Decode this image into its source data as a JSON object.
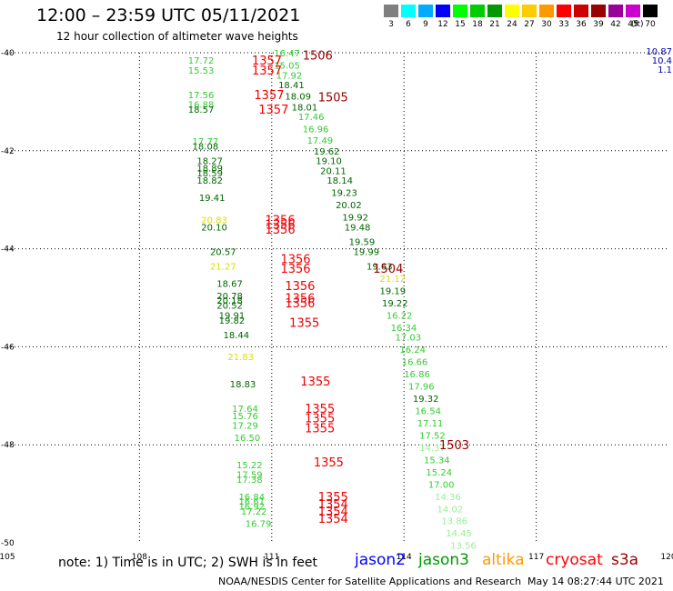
{
  "header": {
    "title": "12:00 – 23:59 UTC 05/11/2021",
    "subtitle": "12 hour collection of altimeter wave heights"
  },
  "color_scale": {
    "labels": [
      "3",
      "6",
      "9",
      "12",
      "15",
      "18",
      "21",
      "24",
      "27",
      "30",
      "33",
      "36",
      "39",
      "42",
      "45",
      "70"
    ],
    "colors": [
      "#7f7f7f",
      "#00ffff",
      "#00aaff",
      "#0000ff",
      "#00ff00",
      "#00cc00",
      "#009900",
      "#ffff00",
      "#ffcc00",
      "#ff9900",
      "#ff0000",
      "#cc0000",
      "#990000",
      "#990099",
      "#cc00cc",
      "#000000"
    ],
    "unit": "(ft)"
  },
  "map": {
    "lon_ticks": [
      "105",
      "108",
      "111",
      "114",
      "117",
      "120"
    ],
    "lat_ticks": [
      "-40",
      "-42",
      "-44",
      "-46",
      "-48",
      "-50"
    ],
    "edge_labels": [
      "10.87",
      "10.4",
      "1.1"
    ],
    "wave_labels": [
      {
        "t": "16.47",
        "lon": 111.05,
        "lat": -40.0,
        "c": "#33cc33"
      },
      {
        "t": "17.72",
        "lon": 109.1,
        "lat": -40.15,
        "c": "#33cc33"
      },
      {
        "t": "15.05",
        "lon": 111.05,
        "lat": -40.25,
        "c": "#33cc33"
      },
      {
        "t": "15.53",
        "lon": 109.1,
        "lat": -40.35,
        "c": "#33cc33"
      },
      {
        "t": "17.92",
        "lon": 111.1,
        "lat": -40.45,
        "c": "#33cc33"
      },
      {
        "t": "18.41",
        "lon": 111.15,
        "lat": -40.65,
        "c": "#006600"
      },
      {
        "t": "17.56",
        "lon": 109.1,
        "lat": -40.85,
        "c": "#33cc33"
      },
      {
        "t": "18.09",
        "lon": 111.3,
        "lat": -40.88,
        "c": "#006600"
      },
      {
        "t": "16.88",
        "lon": 109.1,
        "lat": -41.05,
        "c": "#33cc33"
      },
      {
        "t": "18.01",
        "lon": 111.45,
        "lat": -41.1,
        "c": "#006600"
      },
      {
        "t": "18.57",
        "lon": 109.1,
        "lat": -41.15,
        "c": "#006600"
      },
      {
        "t": "17.46",
        "lon": 111.6,
        "lat": -41.3,
        "c": "#33cc33"
      },
      {
        "t": "16.96",
        "lon": 111.7,
        "lat": -41.55,
        "c": "#33cc33"
      },
      {
        "t": "17.77",
        "lon": 109.2,
        "lat": -41.8,
        "c": "#33cc33"
      },
      {
        "t": "17.49",
        "lon": 111.8,
        "lat": -41.78,
        "c": "#33cc33"
      },
      {
        "t": "18.08",
        "lon": 109.2,
        "lat": -41.9,
        "c": "#006600"
      },
      {
        "t": "19.62",
        "lon": 111.95,
        "lat": -42.0,
        "c": "#006600"
      },
      {
        "t": "18.27",
        "lon": 109.3,
        "lat": -42.2,
        "c": "#006600"
      },
      {
        "t": "19.10",
        "lon": 112.0,
        "lat": -42.2,
        "c": "#006600"
      },
      {
        "t": "18.89",
        "lon": 109.3,
        "lat": -42.35,
        "c": "#006600"
      },
      {
        "t": "20.11",
        "lon": 112.1,
        "lat": -42.4,
        "c": "#006600"
      },
      {
        "t": "18.59",
        "lon": 109.3,
        "lat": -42.45,
        "c": "#006600"
      },
      {
        "t": "18.82",
        "lon": 109.3,
        "lat": -42.6,
        "c": "#006600"
      },
      {
        "t": "18.14",
        "lon": 112.25,
        "lat": -42.6,
        "c": "#006600"
      },
      {
        "t": "19.23",
        "lon": 112.35,
        "lat": -42.85,
        "c": "#006600"
      },
      {
        "t": "19.41",
        "lon": 109.35,
        "lat": -42.95,
        "c": "#006600"
      },
      {
        "t": "20.02",
        "lon": 112.45,
        "lat": -43.1,
        "c": "#006600"
      },
      {
        "t": "19.92",
        "lon": 112.6,
        "lat": -43.35,
        "c": "#006600"
      },
      {
        "t": "20.83",
        "lon": 109.4,
        "lat": -43.4,
        "c": "#dddd00"
      },
      {
        "t": "20.10",
        "lon": 109.4,
        "lat": -43.55,
        "c": "#006600"
      },
      {
        "t": "19.48",
        "lon": 112.65,
        "lat": -43.55,
        "c": "#006600"
      },
      {
        "t": "19.59",
        "lon": 112.75,
        "lat": -43.85,
        "c": "#006600"
      },
      {
        "t": "20.57",
        "lon": 109.6,
        "lat": -44.05,
        "c": "#006600"
      },
      {
        "t": "19.99",
        "lon": 112.85,
        "lat": -44.05,
        "c": "#006600"
      },
      {
        "t": "21.27",
        "lon": 109.6,
        "lat": -44.35,
        "c": "#dddd00"
      },
      {
        "t": "19.63",
        "lon": 113.15,
        "lat": -44.35,
        "c": "#006600"
      },
      {
        "t": "21.12",
        "lon": 113.45,
        "lat": -44.6,
        "c": "#dddd00"
      },
      {
        "t": "18.67",
        "lon": 109.75,
        "lat": -44.7,
        "c": "#006600"
      },
      {
        "t": "19.19",
        "lon": 113.45,
        "lat": -44.85,
        "c": "#006600"
      },
      {
        "t": "20.78",
        "lon": 109.75,
        "lat": -44.95,
        "c": "#006600"
      },
      {
        "t": "20.18",
        "lon": 109.75,
        "lat": -45.05,
        "c": "#006600"
      },
      {
        "t": "20.52",
        "lon": 109.75,
        "lat": -45.15,
        "c": "#006600"
      },
      {
        "t": "19.22",
        "lon": 113.5,
        "lat": -45.1,
        "c": "#006600"
      },
      {
        "t": "19.91",
        "lon": 109.8,
        "lat": -45.35,
        "c": "#006600"
      },
      {
        "t": "16.22",
        "lon": 113.6,
        "lat": -45.35,
        "c": "#33cc33"
      },
      {
        "t": "19.82",
        "lon": 109.8,
        "lat": -45.45,
        "c": "#006600"
      },
      {
        "t": "16.34",
        "lon": 113.7,
        "lat": -45.6,
        "c": "#33cc33"
      },
      {
        "t": "18.44",
        "lon": 109.9,
        "lat": -45.75,
        "c": "#006600"
      },
      {
        "t": "17.03",
        "lon": 113.8,
        "lat": -45.8,
        "c": "#33cc33"
      },
      {
        "t": "16.24",
        "lon": 113.9,
        "lat": -46.05,
        "c": "#33cc33"
      },
      {
        "t": "21.83",
        "lon": 110.0,
        "lat": -46.2,
        "c": "#dddd00"
      },
      {
        "t": "16.66",
        "lon": 113.95,
        "lat": -46.3,
        "c": "#33cc33"
      },
      {
        "t": "16.86",
        "lon": 114.0,
        "lat": -46.55,
        "c": "#33cc33"
      },
      {
        "t": "18.83",
        "lon": 110.05,
        "lat": -46.75,
        "c": "#006600"
      },
      {
        "t": "17.96",
        "lon": 114.1,
        "lat": -46.8,
        "c": "#33cc33"
      },
      {
        "t": "19.32",
        "lon": 114.2,
        "lat": -47.05,
        "c": "#006600"
      },
      {
        "t": "17.64",
        "lon": 110.1,
        "lat": -47.25,
        "c": "#33cc33"
      },
      {
        "t": "16.54",
        "lon": 114.25,
        "lat": -47.3,
        "c": "#33cc33"
      },
      {
        "t": "15.76",
        "lon": 110.1,
        "lat": -47.4,
        "c": "#33cc33"
      },
      {
        "t": "17.11",
        "lon": 114.3,
        "lat": -47.55,
        "c": "#33cc33"
      },
      {
        "t": "17.29",
        "lon": 110.1,
        "lat": -47.6,
        "c": "#33cc33"
      },
      {
        "t": "16.50",
        "lon": 110.15,
        "lat": -47.85,
        "c": "#33cc33"
      },
      {
        "t": "17.52",
        "lon": 114.35,
        "lat": -47.8,
        "c": "#33cc33"
      },
      {
        "t": "14.37",
        "lon": 114.35,
        "lat": -48.05,
        "c": "#99ee99"
      },
      {
        "t": "15.34",
        "lon": 114.45,
        "lat": -48.3,
        "c": "#33cc33"
      },
      {
        "t": "15.22",
        "lon": 110.2,
        "lat": -48.4,
        "c": "#33cc33"
      },
      {
        "t": "15.24",
        "lon": 114.5,
        "lat": -48.55,
        "c": "#33cc33"
      },
      {
        "t": "17.59",
        "lon": 110.2,
        "lat": -48.6,
        "c": "#33cc33"
      },
      {
        "t": "17.38",
        "lon": 110.2,
        "lat": -48.7,
        "c": "#33cc33"
      },
      {
        "t": "17.00",
        "lon": 114.55,
        "lat": -48.8,
        "c": "#33cc33"
      },
      {
        "t": "16.84",
        "lon": 110.25,
        "lat": -49.05,
        "c": "#33cc33"
      },
      {
        "t": "14.36",
        "lon": 114.7,
        "lat": -49.05,
        "c": "#99ee99"
      },
      {
        "t": "16.61",
        "lon": 110.25,
        "lat": -49.15,
        "c": "#33cc33"
      },
      {
        "t": "16.92",
        "lon": 110.25,
        "lat": -49.25,
        "c": "#33cc33"
      },
      {
        "t": "14.02",
        "lon": 114.75,
        "lat": -49.3,
        "c": "#99ee99"
      },
      {
        "t": "17.22",
        "lon": 110.3,
        "lat": -49.35,
        "c": "#33cc33"
      },
      {
        "t": "13.86",
        "lon": 114.85,
        "lat": -49.55,
        "c": "#99ee99"
      },
      {
        "t": "16.79",
        "lon": 110.4,
        "lat": -49.6,
        "c": "#33cc33"
      },
      {
        "t": "14.45",
        "lon": 114.95,
        "lat": -49.8,
        "c": "#99ee99"
      },
      {
        "t": "13.56",
        "lon": 115.05,
        "lat": -50.05,
        "c": "#99ee99"
      }
    ],
    "time_labels": [
      {
        "t": "1506",
        "lon": 111.7,
        "lat": -40.05,
        "c": "#990000"
      },
      {
        "t": "1357",
        "lon": 110.55,
        "lat": -40.15,
        "c": "#ee0000"
      },
      {
        "t": "1357",
        "lon": 110.55,
        "lat": -40.35,
        "c": "#ee0000"
      },
      {
        "t": "1357",
        "lon": 110.6,
        "lat": -40.85,
        "c": "#ee0000"
      },
      {
        "t": "1505",
        "lon": 112.05,
        "lat": -40.9,
        "c": "#990000"
      },
      {
        "t": "1357",
        "lon": 110.7,
        "lat": -41.15,
        "c": "#ee0000"
      },
      {
        "t": "1356",
        "lon": 110.85,
        "lat": -43.4,
        "c": "#ee0000"
      },
      {
        "t": "1356",
        "lon": 110.85,
        "lat": -43.5,
        "c": "#ee0000"
      },
      {
        "t": "1356",
        "lon": 110.85,
        "lat": -43.6,
        "c": "#ee0000"
      },
      {
        "t": "1356",
        "lon": 111.2,
        "lat": -44.2,
        "c": "#ee0000"
      },
      {
        "t": "1356",
        "lon": 111.2,
        "lat": -44.4,
        "c": "#ee0000"
      },
      {
        "t": "1504",
        "lon": 113.3,
        "lat": -44.4,
        "c": "#990000"
      },
      {
        "t": "1356",
        "lon": 111.3,
        "lat": -44.75,
        "c": "#ee0000"
      },
      {
        "t": "1356",
        "lon": 111.3,
        "lat": -45.0,
        "c": "#ee0000"
      },
      {
        "t": "1356",
        "lon": 111.3,
        "lat": -45.1,
        "c": "#ee0000"
      },
      {
        "t": "1355",
        "lon": 111.4,
        "lat": -45.5,
        "c": "#ee0000"
      },
      {
        "t": "1355",
        "lon": 111.65,
        "lat": -46.7,
        "c": "#ee0000"
      },
      {
        "t": "1355",
        "lon": 111.75,
        "lat": -47.25,
        "c": "#ee0000"
      },
      {
        "t": "1355",
        "lon": 111.75,
        "lat": -47.45,
        "c": "#ee0000"
      },
      {
        "t": "1355",
        "lon": 111.75,
        "lat": -47.65,
        "c": "#ee0000"
      },
      {
        "t": "1503",
        "lon": 114.8,
        "lat": -48.0,
        "c": "#990000"
      },
      {
        "t": "1355",
        "lon": 111.95,
        "lat": -48.35,
        "c": "#ee0000"
      },
      {
        "t": "1355",
        "lon": 112.05,
        "lat": -49.05,
        "c": "#ee0000"
      },
      {
        "t": "1354",
        "lon": 112.05,
        "lat": -49.2,
        "c": "#ee0000"
      },
      {
        "t": "1354",
        "lon": 112.05,
        "lat": -49.35,
        "c": "#ee0000"
      },
      {
        "t": "1354",
        "lon": 112.05,
        "lat": -49.5,
        "c": "#ee0000"
      }
    ]
  },
  "footer": {
    "note": "note: 1) Time is in UTC; 2) SWH is in feet",
    "legend": [
      {
        "label": "jason2",
        "color": "#0000ff"
      },
      {
        "label": "jason3",
        "color": "#009900"
      },
      {
        "label": "altika",
        "color": "#ff9900"
      },
      {
        "label": "cryosat",
        "color": "#ff0000"
      },
      {
        "label": "s3a",
        "color": "#990000"
      }
    ],
    "credit": "NOAA/NESDIS Center for Satellite Applications and Research",
    "timestamp": "May 14 08:27:44 UTC 2021"
  }
}
